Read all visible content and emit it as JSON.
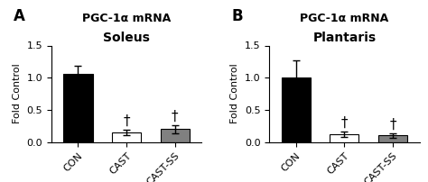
{
  "chart_data": [
    {
      "type": "bar",
      "title": "Soleus",
      "subtitle": "PGC-1α mRNA",
      "panel_label": "A",
      "categories": [
        "CON",
        "CAST",
        "CAST-SS"
      ],
      "values": [
        1.06,
        0.15,
        0.2
      ],
      "errors": [
        0.13,
        0.04,
        0.06
      ],
      "colors": [
        "#000000",
        "#ffffff",
        "#808080"
      ],
      "y_label": "Fold Control",
      "ylim": [
        0,
        1.5
      ],
      "yticks": [
        0.0,
        0.5,
        1.0,
        1.5
      ],
      "annotations": [
        {
          "category": "CAST",
          "text": "†"
        },
        {
          "category": "CAST-SS",
          "text": "†"
        }
      ]
    },
    {
      "type": "bar",
      "title": "Plantaris",
      "subtitle": "PGC-1α mRNA",
      "panel_label": "B",
      "categories": [
        "CON",
        "CAST",
        "CAST-SS"
      ],
      "values": [
        1.0,
        0.12,
        0.1
      ],
      "errors": [
        0.27,
        0.04,
        0.03
      ],
      "colors": [
        "#000000",
        "#ffffff",
        "#808080"
      ],
      "y_label": "Fold Control",
      "ylim": [
        0,
        1.5
      ],
      "yticks": [
        0.0,
        0.5,
        1.0,
        1.5
      ],
      "annotations": [
        {
          "category": "CAST",
          "text": "†"
        },
        {
          "category": "CAST-SS",
          "text": "†"
        }
      ]
    }
  ]
}
